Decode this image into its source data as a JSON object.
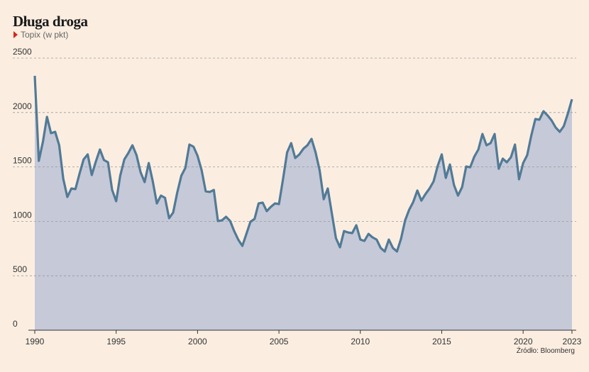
{
  "chart_data": {
    "type": "area",
    "title": "Długa droga",
    "subtitle": "Topix (w pkt)",
    "source": "Źródło: Bloomberg",
    "series": [
      {
        "name": "Topix",
        "color": "#527a96",
        "fill": "#c5c9d8",
        "x": [
          1990,
          1990.25,
          1990.5,
          1990.75,
          1991,
          1991.25,
          1991.5,
          1991.75,
          1992,
          1992.25,
          1992.5,
          1992.75,
          1993,
          1993.25,
          1993.5,
          1993.75,
          1994,
          1994.25,
          1994.5,
          1994.75,
          1995,
          1995.25,
          1995.5,
          1995.75,
          1996,
          1996.25,
          1996.5,
          1996.75,
          1997,
          1997.25,
          1997.5,
          1997.75,
          1998,
          1998.25,
          1998.5,
          1998.75,
          1999,
          1999.25,
          1999.5,
          1999.75,
          2000,
          2000.25,
          2000.5,
          2000.75,
          2001,
          2001.25,
          2001.5,
          2001.75,
          2002,
          2002.25,
          2002.5,
          2002.75,
          2003,
          2003.25,
          2003.5,
          2003.75,
          2004,
          2004.25,
          2004.5,
          2004.75,
          2005,
          2005.25,
          2005.5,
          2005.75,
          2006,
          2006.25,
          2006.5,
          2006.75,
          2007,
          2007.25,
          2007.5,
          2007.75,
          2008,
          2008.25,
          2008.5,
          2008.75,
          2009,
          2009.25,
          2009.5,
          2009.75,
          2010,
          2010.25,
          2010.5,
          2010.75,
          2011,
          2011.25,
          2011.5,
          2011.75,
          2012,
          2012.25,
          2012.5,
          2012.75,
          2013,
          2013.25,
          2013.5,
          2013.75,
          2014,
          2014.25,
          2014.5,
          2014.75,
          2015,
          2015.25,
          2015.5,
          2015.75,
          2016,
          2016.25,
          2016.5,
          2016.75,
          2017,
          2017.25,
          2017.5,
          2017.75,
          2018,
          2018.25,
          2018.5,
          2018.75,
          2019,
          2019.25,
          2019.5,
          2019.75,
          2020,
          2020.25,
          2020.5,
          2020.75,
          2021,
          2021.25,
          2021.5,
          2021.75,
          2022,
          2022.25,
          2022.5,
          2022.75,
          2023
        ],
        "values": [
          2337,
          1556,
          1732,
          1960,
          1810,
          1823,
          1700,
          1393,
          1224,
          1302,
          1296,
          1439,
          1569,
          1615,
          1426,
          1549,
          1660,
          1563,
          1543,
          1289,
          1185,
          1419,
          1569,
          1628,
          1699,
          1608,
          1452,
          1361,
          1536,
          1367,
          1165,
          1237,
          1217,
          1029,
          1081,
          1263,
          1419,
          1491,
          1706,
          1686,
          1602,
          1471,
          1276,
          1270,
          1289,
          1003,
          1009,
          1042,
          1003,
          911,
          833,
          775,
          885,
          996,
          1022,
          1165,
          1172,
          1094,
          1133,
          1165,
          1159,
          1387,
          1634,
          1719,
          1582,
          1615,
          1667,
          1699,
          1758,
          1634,
          1471,
          1204,
          1302,
          1074,
          846,
          762,
          911,
          898,
          892,
          964,
          833,
          820,
          885,
          853,
          833,
          755,
          723,
          833,
          755,
          723,
          840,
          1009,
          1107,
          1178,
          1283,
          1191,
          1250,
          1302,
          1367,
          1510,
          1615,
          1400,
          1523,
          1335,
          1237,
          1315,
          1504,
          1497,
          1595,
          1660,
          1803,
          1699,
          1719,
          1803,
          1484,
          1576,
          1543,
          1589,
          1706,
          1387,
          1536,
          1608,
          1790,
          1940,
          1934,
          2012,
          1973,
          1927,
          1862,
          1823,
          1875,
          1992,
          2122
        ]
      }
    ],
    "xlim": [
      1990,
      2023
    ],
    "xticks": [
      1990,
      1995,
      2000,
      2005,
      2010,
      2015,
      2020,
      2023
    ],
    "ylim": [
      0,
      2500
    ],
    "yticks": [
      0,
      500,
      1000,
      1500,
      2000,
      2500
    ],
    "grid": true
  }
}
